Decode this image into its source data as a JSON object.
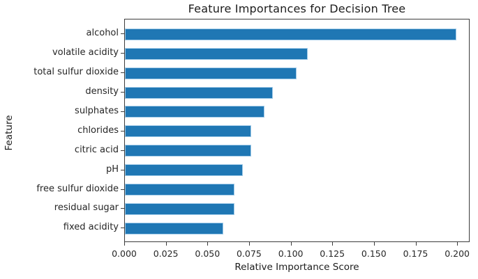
{
  "chart_data": {
    "type": "bar",
    "orientation": "horizontal",
    "title": "Feature Importances for Decision Tree",
    "xlabel": "Relative Importance Score",
    "ylabel": "Feature",
    "categories": [
      "alcohol",
      "volatile acidity",
      "total sulfur dioxide",
      "density",
      "sulphates",
      "chlorides",
      "citric acid",
      "pH",
      "free sulfur dioxide",
      "residual sugar",
      "fixed acidity"
    ],
    "values": [
      0.199,
      0.11,
      0.103,
      0.089,
      0.084,
      0.076,
      0.076,
      0.071,
      0.066,
      0.066,
      0.059
    ],
    "xlim": [
      0.0,
      0.2075
    ],
    "xticks": [
      0.0,
      0.025,
      0.05,
      0.075,
      0.1,
      0.125,
      0.15,
      0.175,
      0.2
    ],
    "xtick_labels": [
      "0.000",
      "0.025",
      "0.050",
      "0.075",
      "0.100",
      "0.125",
      "0.150",
      "0.175",
      "0.200"
    ],
    "grid": false,
    "legend": false,
    "bar_color": "#1f77b4",
    "bar_edge_color": "#a3cce9",
    "axis_color": "#3c3c3c",
    "text_color": "#262626"
  }
}
